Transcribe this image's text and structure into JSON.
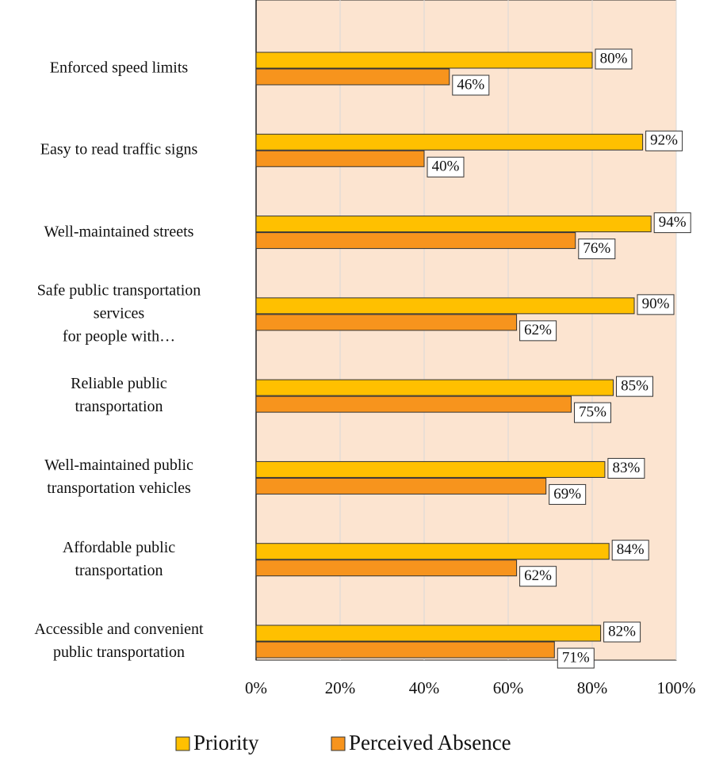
{
  "chart_data": {
    "type": "bar",
    "orientation": "horizontal",
    "categories": [
      "Enforced speed limits",
      "Easy to read traffic signs",
      "Well-maintained streets",
      "Safe public transportation\nservices\nfor people with…",
      "Reliable public\ntransportation",
      "Well-maintained public\ntransportation vehicles",
      "Affordable public\ntransportation",
      "Accessible and convenient\npublic transportation"
    ],
    "series": [
      {
        "name": "Priority",
        "color": "#ffc000",
        "values": [
          80,
          92,
          94,
          90,
          85,
          83,
          84,
          82
        ],
        "value_labels": [
          "80%",
          "92%",
          "94%",
          "90%",
          "85%",
          "83%",
          "84%",
          "82%"
        ]
      },
      {
        "name": "Perceived Absence",
        "color": "#f7941d",
        "values": [
          46,
          40,
          76,
          62,
          75,
          69,
          62,
          71
        ],
        "value_labels": [
          "46%",
          "40%",
          "76%",
          "62%",
          "75%",
          "69%",
          "62%",
          "71%"
        ]
      }
    ],
    "xlim": [
      0,
      100
    ],
    "xticks": [
      {
        "value": 0,
        "label": "0%"
      },
      {
        "value": 20,
        "label": "20%"
      },
      {
        "value": 40,
        "label": "40%"
      },
      {
        "value": 60,
        "label": "60%"
      },
      {
        "value": 80,
        "label": "80%"
      },
      {
        "value": 100,
        "label": "100%"
      }
    ],
    "grid": true,
    "legend": "bottom"
  }
}
